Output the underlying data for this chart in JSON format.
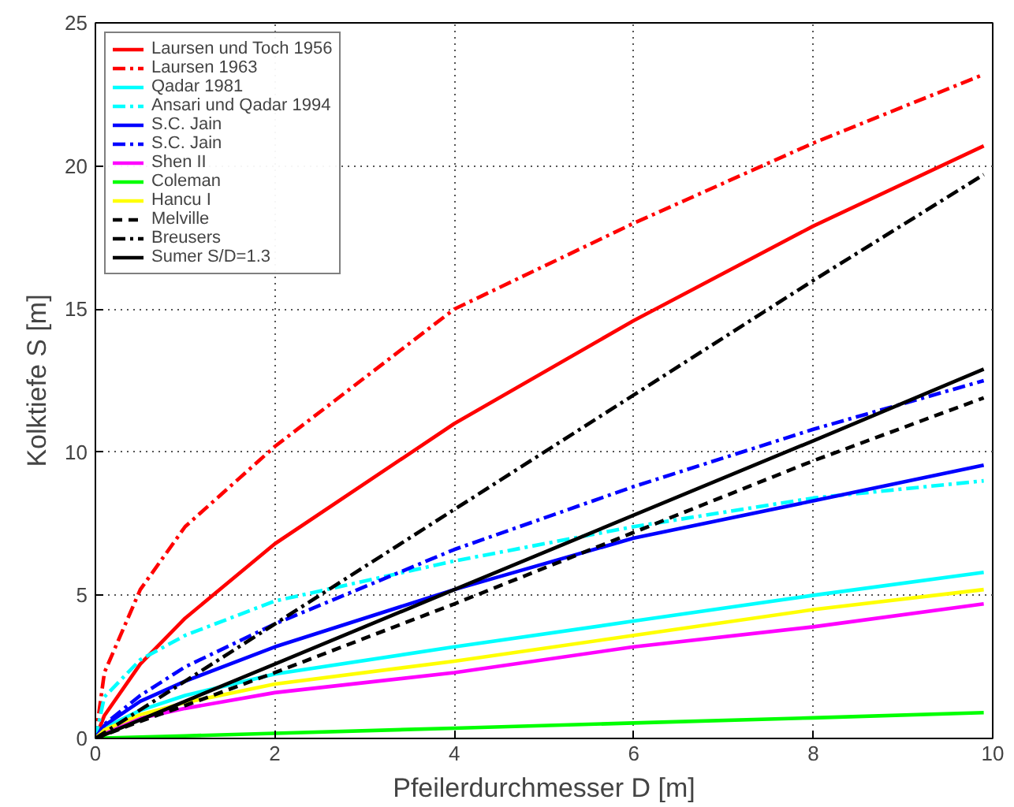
{
  "chart_data": {
    "type": "line",
    "xlabel": "Pfeilerdurchmesser D [m]",
    "ylabel": "Kolktiefe S [m]",
    "x": [
      0,
      0.1,
      0.5,
      1,
      2,
      4,
      6,
      8,
      9.9
    ],
    "xlim": [
      0,
      10
    ],
    "ylim": [
      0,
      25
    ],
    "xticks": [
      0,
      2,
      4,
      6,
      8,
      10
    ],
    "yticks": [
      0,
      5,
      10,
      15,
      20,
      25
    ],
    "grid": true,
    "legend": "top left",
    "marker": "none",
    "series": [
      {
        "name": "Laursen und Toch 1956",
        "color": "#ff0000",
        "line_style": "solid",
        "values": [
          0,
          0.8,
          2.6,
          4.2,
          6.8,
          11.0,
          14.6,
          17.9,
          20.7
        ]
      },
      {
        "name": "Laursen 1963",
        "color": "#ff0000",
        "line_style": "dashdot",
        "values": [
          0,
          2.3,
          5.2,
          7.4,
          10.2,
          15.0,
          18.0,
          20.8,
          23.2
        ]
      },
      {
        "name": "Qadar 1981",
        "color": "#00ffff",
        "line_style": "solid",
        "values": [
          0,
          0.37,
          0.98,
          1.5,
          2.25,
          3.2,
          4.1,
          5.0,
          5.8
        ]
      },
      {
        "name": "Ansari und Qadar 1994",
        "color": "#00ffff",
        "line_style": "dashdot",
        "values": [
          0,
          1.45,
          2.75,
          3.6,
          4.8,
          6.2,
          7.4,
          8.4,
          9.0
        ]
      },
      {
        "name": "S.C. Jain",
        "color": "#0000ff",
        "line_style": "solid",
        "values": [
          0,
          0.45,
          1.3,
          2.0,
          3.2,
          5.2,
          7.0,
          8.3,
          9.55
        ]
      },
      {
        "name": "S.C. Jain",
        "color": "#0000ff",
        "line_style": "dashdot",
        "values": [
          0,
          0.49,
          1.5,
          2.5,
          4.0,
          6.6,
          8.8,
          10.8,
          12.5
        ]
      },
      {
        "name": "Shen II",
        "color": "#ff00ff",
        "line_style": "solid",
        "values": [
          0,
          0.26,
          0.7,
          1.05,
          1.6,
          2.3,
          3.2,
          3.9,
          4.7
        ]
      },
      {
        "name": "Coleman",
        "color": "#00ff00",
        "line_style": "solid",
        "values": [
          0,
          0.01,
          0.05,
          0.09,
          0.18,
          0.36,
          0.54,
          0.72,
          0.9
        ]
      },
      {
        "name": "Hancu I",
        "color": "#ffff00",
        "line_style": "solid",
        "values": [
          0,
          0.3,
          0.83,
          1.25,
          1.9,
          2.7,
          3.6,
          4.5,
          5.2
        ]
      },
      {
        "name": "Melville",
        "color": "#000000",
        "line_style": "dashed",
        "values": [
          0,
          0.12,
          0.6,
          1.15,
          2.3,
          4.7,
          7.2,
          9.7,
          11.9
        ]
      },
      {
        "name": "Breusers",
        "color": "#000000",
        "line_style": "dashdot",
        "values": [
          0,
          0.2,
          1.0,
          2.0,
          4.0,
          8.0,
          12.0,
          16.0,
          19.7
        ]
      },
      {
        "name": "Sumer S/D=1.3",
        "color": "#000000",
        "line_style": "solid",
        "values": [
          0,
          0.13,
          0.65,
          1.3,
          2.6,
          5.2,
          7.8,
          10.4,
          12.9
        ]
      }
    ]
  }
}
